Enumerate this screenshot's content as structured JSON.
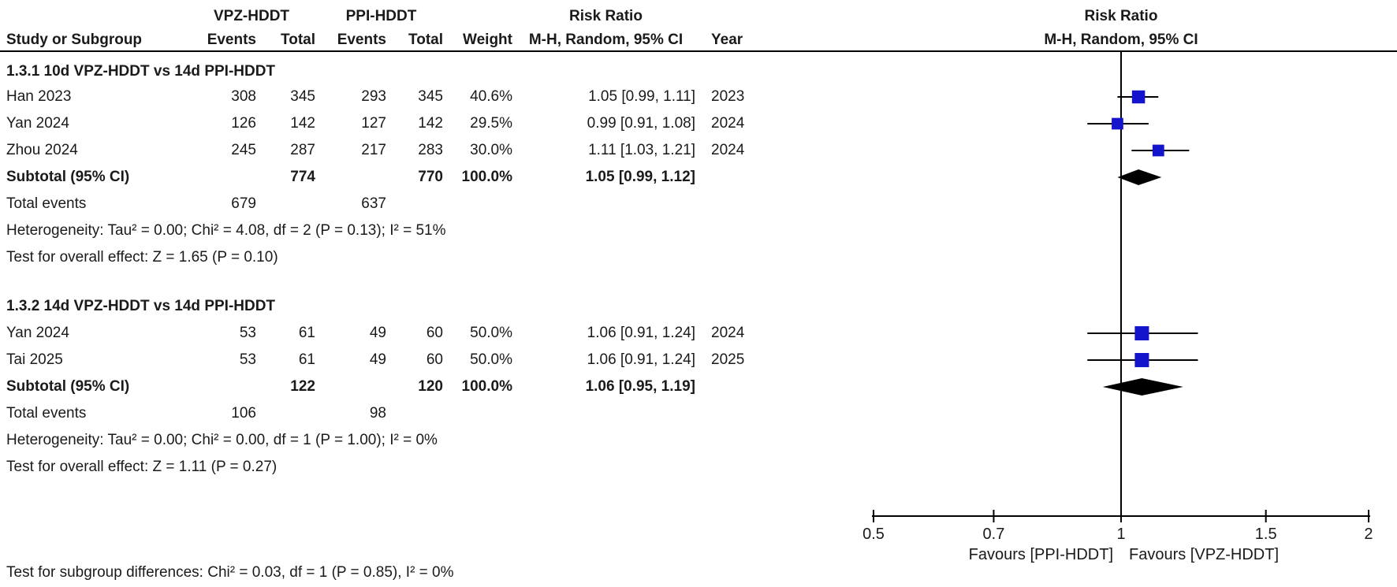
{
  "colors": {
    "marker_blue": "#1414CC",
    "diamond_black": "#000000",
    "line_black": "#000000",
    "text": "#1a1a1a"
  },
  "header": {
    "group1": "VPZ-HDDT",
    "group2": "PPI-HDDT",
    "effect_title": "Risk Ratio",
    "effect_sub": "M-H, Random, 95% CI",
    "col_study": "Study or Subgroup",
    "col_events": "Events",
    "col_total": "Total",
    "col_events2": "Events",
    "col_total2": "Total",
    "col_weight": "Weight",
    "col_year": "Year",
    "plot_title": "Risk Ratio",
    "plot_sub": "M-H, Random, 95% CI"
  },
  "table": {
    "subgroups": [
      {
        "title": "1.3.1 10d VPZ-HDDT vs 14d PPI-HDDT",
        "studies": [
          {
            "name": "Han 2023",
            "e1": "308",
            "t1": "345",
            "e2": "293",
            "t2": "345",
            "weight": "40.6%",
            "ci": "1.05 [0.99, 1.11]",
            "year": "2023"
          },
          {
            "name": "Yan 2024",
            "e1": "126",
            "t1": "142",
            "e2": "127",
            "t2": "142",
            "weight": "29.5%",
            "ci": "0.99 [0.91, 1.08]",
            "year": "2024"
          },
          {
            "name": "Zhou 2024",
            "e1": "245",
            "t1": "287",
            "e2": "217",
            "t2": "283",
            "weight": "30.0%",
            "ci": "1.11 [1.03, 1.21]",
            "year": "2024"
          }
        ],
        "subtotal": {
          "label": "Subtotal (95% CI)",
          "t1": "774",
          "t2": "770",
          "weight": "100.0%",
          "ci": "1.05 [0.99, 1.12]"
        },
        "total_events_label": "Total events",
        "total_e1": "679",
        "total_e2": "637",
        "heterogeneity": "Heterogeneity: Tau² = 0.00; Chi² = 4.08, df = 2 (P = 0.13); I² = 51%",
        "overall": "Test for overall effect: Z = 1.65 (P = 0.10)"
      },
      {
        "title": "1.3.2 14d VPZ-HDDT vs 14d PPI-HDDT",
        "studies": [
          {
            "name": "Yan 2024",
            "e1": "53",
            "t1": "61",
            "e2": "49",
            "t2": "60",
            "weight": "50.0%",
            "ci": "1.06 [0.91, 1.24]",
            "year": "2024"
          },
          {
            "name": "Tai 2025",
            "e1": "53",
            "t1": "61",
            "e2": "49",
            "t2": "60",
            "weight": "50.0%",
            "ci": "1.06 [0.91, 1.24]",
            "year": "2025"
          }
        ],
        "subtotal": {
          "label": "Subtotal (95% CI)",
          "t1": "122",
          "t2": "120",
          "weight": "100.0%",
          "ci": "1.06 [0.95, 1.19]"
        },
        "total_events_label": "Total events",
        "total_e1": "106",
        "total_e2": "98",
        "heterogeneity": "Heterogeneity: Tau² = 0.00; Chi² = 0.00, df = 1 (P = 1.00); I² = 0%",
        "overall": "Test for overall effect: Z = 1.11 (P = 0.27)"
      }
    ],
    "footer": "Test for subgroup differences: Chi² = 0.03, df = 1 (P = 0.85), I² = 0%"
  },
  "chart_data": {
    "type": "scatter",
    "subtype": "forest-plot",
    "title": "Risk Ratio",
    "subtitle": "M-H, Random, 95% CI",
    "xscale": "log",
    "xlim": [
      0.5,
      2
    ],
    "xticks": [
      0.5,
      0.7,
      1,
      1.5,
      2
    ],
    "xtick_labels": [
      "0.5",
      "0.7",
      "1",
      "1.5",
      "2"
    ],
    "null_line": 1,
    "favours_left": "Favours [PPI-HDDT]",
    "favours_right": "Favours [VPZ-HDDT]",
    "points": [
      {
        "name": "Han 2023",
        "subgroup": "1.3.1 10d VPZ-HDDT vs 14d PPI-HDDT",
        "marker": "square",
        "rr": 1.05,
        "ci_low": 0.99,
        "ci_high": 1.11,
        "weight_pct": 40.6
      },
      {
        "name": "Yan 2024",
        "subgroup": "1.3.1 10d VPZ-HDDT vs 14d PPI-HDDT",
        "marker": "square",
        "rr": 0.99,
        "ci_low": 0.91,
        "ci_high": 1.08,
        "weight_pct": 29.5
      },
      {
        "name": "Zhou 2024",
        "subgroup": "1.3.1 10d VPZ-HDDT vs 14d PPI-HDDT",
        "marker": "square",
        "rr": 1.11,
        "ci_low": 1.03,
        "ci_high": 1.21,
        "weight_pct": 30.0
      },
      {
        "name": "Subtotal (95% CI) 1.3.1",
        "subgroup": "1.3.1 10d VPZ-HDDT vs 14d PPI-HDDT",
        "marker": "diamond",
        "rr": 1.05,
        "ci_low": 0.99,
        "ci_high": 1.12,
        "weight_pct": 100.0
      },
      {
        "name": "Yan 2024",
        "subgroup": "1.3.2 14d VPZ-HDDT vs 14d PPI-HDDT",
        "marker": "square",
        "rr": 1.06,
        "ci_low": 0.91,
        "ci_high": 1.24,
        "weight_pct": 50.0
      },
      {
        "name": "Tai 2025",
        "subgroup": "1.3.2 14d VPZ-HDDT vs 14d PPI-HDDT",
        "marker": "square",
        "rr": 1.06,
        "ci_low": 0.91,
        "ci_high": 1.24,
        "weight_pct": 50.0
      },
      {
        "name": "Subtotal (95% CI) 1.3.2",
        "subgroup": "1.3.2 14d VPZ-HDDT vs 14d PPI-HDDT",
        "marker": "diamond",
        "rr": 1.06,
        "ci_low": 0.95,
        "ci_high": 1.19,
        "weight_pct": 100.0
      }
    ]
  }
}
